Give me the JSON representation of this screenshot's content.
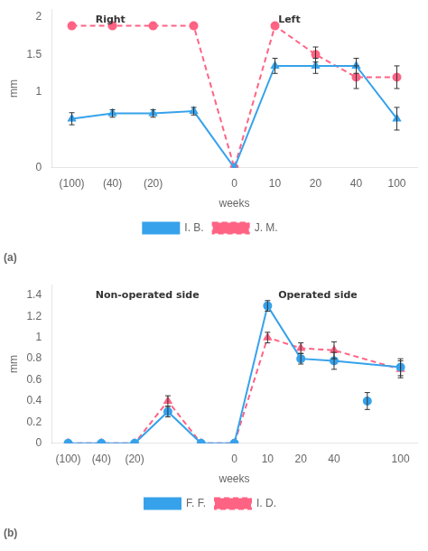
{
  "chart_data": [
    {
      "type": "line",
      "title": "(a)",
      "annotations": [
        "Right",
        "Left"
      ],
      "x_label": "weeks",
      "y_label": "mm",
      "grid": false,
      "legend": "bottom",
      "categories": [
        "(100)",
        "(40)",
        "(20)",
        null,
        "0",
        "10",
        "20",
        "40",
        "100"
      ],
      "ylim": [
        0,
        2.1
      ],
      "yticks": [
        0,
        {
          "value": 0.5,
          "label": ""
        },
        1,
        1.5,
        2
      ],
      "series": [
        {
          "name": "I. B.",
          "color": "#36a2eb",
          "marker": "triangle",
          "line_style": "solid",
          "values": [
            0.65,
            0.72,
            0.72,
            0.75,
            0.0,
            1.35,
            1.35,
            1.35,
            0.65
          ],
          "errors": [
            0.08,
            0.05,
            0.05,
            0.05,
            0.0,
            0.1,
            0.1,
            0.1,
            0.15
          ]
        },
        {
          "name": "J. M.",
          "color": "#ff6384",
          "marker": "circle",
          "line_style": "dashed",
          "values": [
            1.88,
            1.88,
            1.88,
            1.88,
            0.0,
            1.88,
            1.5,
            1.2,
            1.2
          ],
          "errors": [
            0.0,
            0.0,
            0.0,
            0.0,
            0.0,
            0.0,
            0.1,
            0.15,
            0.15
          ]
        }
      ]
    },
    {
      "type": "line",
      "title": "(b)",
      "annotations": [
        "Non-operated side",
        "Operated side"
      ],
      "x_label": "weeks",
      "y_label": "mm",
      "grid": false,
      "legend": "bottom",
      "categories": [
        "(100)",
        "(40)",
        "(20)",
        null,
        null,
        "0",
        "10",
        "20",
        "40",
        null,
        "100"
      ],
      "ylim": [
        0,
        1.5
      ],
      "yticks": [
        0,
        0.2,
        0.4,
        0.6,
        0.8,
        1,
        1.2,
        1.4
      ],
      "series": [
        {
          "name": "F. F.",
          "color": "#36a2eb",
          "marker": "circle",
          "line_style": "solid",
          "values": [
            0.0,
            0.0,
            0.0,
            0.3,
            0.0,
            0.0,
            1.3,
            0.8,
            0.78,
            null,
            0.72
          ],
          "errors": [
            0.0,
            0.0,
            0.0,
            0.05,
            0.0,
            0.0,
            0.05,
            0.05,
            0.08,
            null,
            0.08
          ]
        },
        {
          "name": "I. D.",
          "color": "#ff6384",
          "marker": "triangle",
          "line_style": "dashed",
          "values": [
            0.0,
            0.0,
            0.0,
            0.4,
            0.0,
            0.0,
            1.0,
            0.9,
            0.88,
            null,
            0.7
          ],
          "errors": [
            0.0,
            0.0,
            0.0,
            0.05,
            0.0,
            0.0,
            0.05,
            0.05,
            0.08,
            null,
            0.08
          ]
        },
        {
          "type": "scatter",
          "color": "#36a2eb",
          "marker": "circle",
          "values": [
            null,
            null,
            null,
            null,
            null,
            null,
            null,
            null,
            null,
            0.4,
            null
          ],
          "errors": [
            null,
            null,
            null,
            null,
            null,
            null,
            null,
            null,
            null,
            0.08,
            null
          ]
        }
      ]
    }
  ]
}
